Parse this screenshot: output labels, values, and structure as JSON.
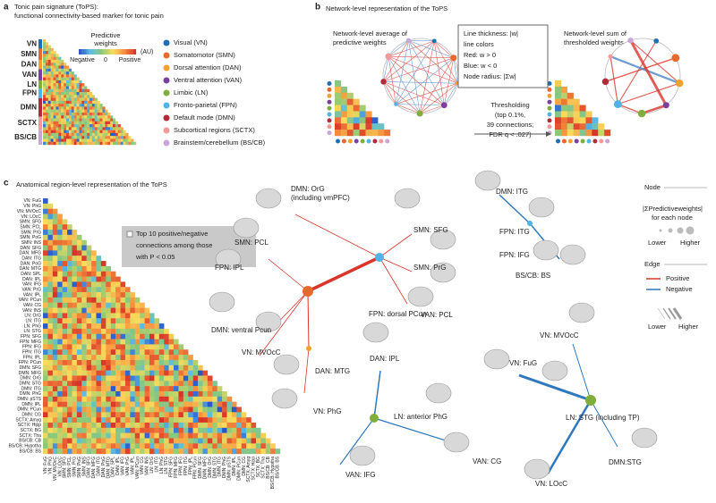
{
  "panel_a": {
    "label": "a",
    "title": [
      "Tonic pain signature (ToPS):",
      "functional connectivity-based marker for tonic pain"
    ],
    "colorbar_title": [
      "Predictive",
      "weights"
    ],
    "colorbar_unit": "(AU)",
    "colorbar_ticks": [
      "Negative",
      "0",
      "Positive"
    ],
    "networks": [
      {
        "abbr": "VN",
        "name": "Visual (VN)",
        "color": "#1f6fb5"
      },
      {
        "abbr": "SMN",
        "name": "Somatomotor (SMN)",
        "color": "#e8692b"
      },
      {
        "abbr": "DAN",
        "name": "Dorsal attention (DAN)",
        "color": "#f2a12e"
      },
      {
        "abbr": "VAN",
        "name": "Ventral attention (VAN)",
        "color": "#7b3f9e"
      },
      {
        "abbr": "LN",
        "name": "Limbic (LN)",
        "color": "#7fae3a"
      },
      {
        "abbr": "FPN",
        "name": "Fronto-parietal (FPN)",
        "color": "#4fb3e8"
      },
      {
        "abbr": "DMN",
        "name": "Default mode (DMN)",
        "color": "#b52a3a"
      },
      {
        "abbr": "SCTX",
        "name": "Subcortical regions (SCTX)",
        "color": "#f29a9a"
      },
      {
        "abbr": "BS/CB",
        "name": "Brainstem/cerebellum (BS/CB)",
        "color": "#c9a6d6"
      }
    ]
  },
  "panel_b": {
    "label": "b",
    "title": "Network-level representation of the ToPS",
    "left_title": [
      "Network-level average of",
      "predictive weights"
    ],
    "right_title": [
      "Network-level sum of",
      "thresholded weights"
    ],
    "key": [
      "Line thickness: |w|",
      "line colors",
      "Red: w > 0",
      "Blue: w < 0",
      "Node radius: |Σw|"
    ],
    "threshold": [
      "Thresholding",
      "(top 0.1%,",
      "39 connections;",
      "FDR q < .027)"
    ]
  },
  "panel_c": {
    "label": "c",
    "title": "Anatomical region-level representation of the ToPS",
    "note": [
      "Top 10 positive/negative",
      "connections among those",
      "with P < 0.05"
    ],
    "regions": [
      "VN: FuG",
      "VN: PhG",
      "VN: MVOcC",
      "VN: LOcC",
      "SMN: SFG",
      "SMN: PCL",
      "SMN: PrG",
      "SMN: PoG",
      "SMN: INS",
      "DAN: SFG",
      "DAN: MFG",
      "DAN: ITG",
      "DAN: PoG",
      "DAN: MTG",
      "DAN: SPL",
      "DAN: IPL",
      "VAN: IFG",
      "VAN: PrG",
      "VAN: IPL",
      "VAN: PCun",
      "VAN: CG",
      "VAN: INS",
      "LN: OrG",
      "LN: ITG",
      "LN: PhG",
      "LN: STG",
      "FPN: SFG",
      "FPN: MFG",
      "FPN: IFG",
      "FPN: ITG",
      "FPN: IPL",
      "FPN: PCun",
      "DMN: SFG",
      "DMN: MFG",
      "DMN: OrG",
      "DMN: STG",
      "DMN: ITG",
      "DMN: PhG",
      "DMN: pSTS",
      "DMN: IPL",
      "DMN: PCun",
      "DMN: CG",
      "SCTX: Amyg",
      "SCTX: Hipp",
      "SCTX: BG",
      "SCTX: Tha",
      "BS/CB: CB",
      "BS/CB: Hypotha",
      "BS/CB: BS"
    ],
    "node_labels": [
      "DMN: OrG",
      "(including vmPFC)",
      "SMN: PCL",
      "FPN: IPL",
      "SMN: SFG",
      "SMN: PrG",
      "DMN: ventral Pcun",
      "FPN: dorsal PCun",
      "VAN: PCL",
      "VN: MVOcC",
      "DAN: MTG",
      "VN: PhG",
      "DMN: ITG",
      "FPN: ITG",
      "FPN: IFG",
      "BS/CB: BS",
      "VN: MVOcC",
      "DAN: IPL",
      "VN: FuG",
      "LN: anterior PhG",
      "LN: STG (including TP)",
      "VAN: IFG",
      "VAN: CG",
      "DMN:STG",
      "VN: LOcC"
    ],
    "legend": {
      "node_title": "Node",
      "node_desc": [
        "|ΣPredictiveweights|",
        "for each node"
      ],
      "node_range": [
        "Lower",
        "Higher"
      ],
      "edge_title": "Edge",
      "edge_items": [
        {
          "label": "Positive",
          "color": "#d9352b"
        },
        {
          "label": "Negative",
          "color": "#2f78bd"
        }
      ],
      "edge_range": [
        "Lower",
        "Higher"
      ]
    }
  }
}
